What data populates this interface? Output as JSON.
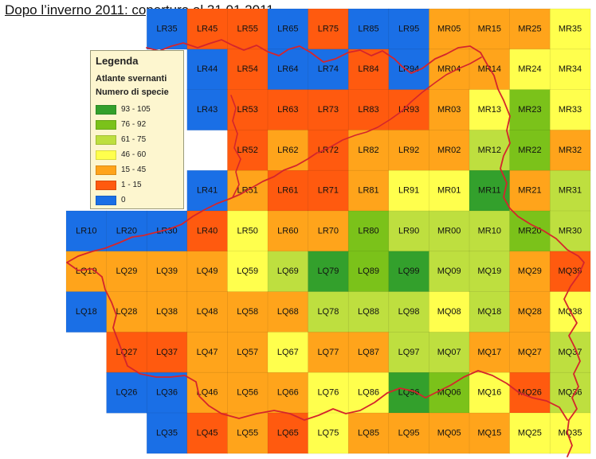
{
  "title": "Dopo l’inverno 2011: copertura al 31.01.2011",
  "legend": {
    "title": "Legenda",
    "subtitle": "Atlante svernanti",
    "heading": "Numero di specie",
    "classes": [
      {
        "label": "93 - 105",
        "color": "#33a02c"
      },
      {
        "label": "76 - 92",
        "color": "#7bc21a"
      },
      {
        "label": "61 - 75",
        "color": "#bedf3f"
      },
      {
        "label": "46 - 60",
        "color": "#ffff4d"
      },
      {
        "label": "15 - 45",
        "color": "#ffa41b"
      },
      {
        "label": "1 - 15",
        "color": "#ff5a0f"
      },
      {
        "label": "0",
        "color": "#1a6fe6"
      }
    ]
  },
  "border_color": "#d4252c",
  "grid": {
    "columns": [
      "LR10",
      "LR20",
      "LR30",
      "LR40",
      "LR50",
      "LR60",
      "LR70",
      "LR80",
      "LR90",
      "MR00",
      "MR10",
      "MR20",
      "MR30"
    ],
    "rows": [
      [
        "LR35",
        "LR45",
        "LR55",
        "LR65",
        "LR75",
        "LR85",
        "LR95",
        "MR05",
        "MR15",
        "MR25",
        "MR35"
      ],
      [
        "LR44",
        "LR54",
        "LR64",
        "LR74",
        "LR84",
        "LR94",
        "MR04",
        "MR14",
        "MR24",
        "MR34"
      ],
      [
        "LR43",
        "LR53",
        "LR63",
        "LR73",
        "LR83",
        "LR93",
        "MR03",
        "MR13",
        "MR23",
        "MR33"
      ],
      [
        "LR52",
        "LR62",
        "LR72",
        "LR82",
        "LR92",
        "MR02",
        "MR12",
        "MR22",
        "MR32"
      ],
      [
        "LR41",
        "LR51",
        "LR61",
        "LR71",
        "LR81",
        "LR91",
        "MR01",
        "MR11",
        "MR21",
        "MR31"
      ],
      [
        "LR10",
        "LR20",
        "LR30",
        "LR40",
        "LR50",
        "LR60",
        "LR70",
        "LR80",
        "LR90",
        "MR00",
        "MR10",
        "MR20",
        "MR30"
      ],
      [
        "LQ19",
        "LQ29",
        "LQ39",
        "LQ49",
        "LQ59",
        "LQ69",
        "LQ79",
        "LQ89",
        "LQ99",
        "MQ09",
        "MQ19",
        "MQ29",
        "MQ39"
      ],
      [
        "LQ18",
        "LQ28",
        "LQ38",
        "LQ48",
        "LQ58",
        "LQ68",
        "LQ78",
        "LQ88",
        "LQ98",
        "MQ08",
        "MQ18",
        "MQ28",
        "MQ38"
      ],
      [
        "LQ27",
        "LQ37",
        "LQ47",
        "LQ57",
        "LQ67",
        "LQ77",
        "LQ87",
        "LQ97",
        "MQ07",
        "MQ17",
        "MQ27",
        "MQ37"
      ],
      [
        "LQ26",
        "LQ36",
        "LQ46",
        "LQ56",
        "LQ66",
        "LQ76",
        "LQ86",
        "LQ96",
        "MQ06",
        "MQ16",
        "MQ26",
        "MQ36"
      ],
      [
        "LQ35",
        "LQ45",
        "LQ55",
        "LQ65",
        "LQ75",
        "LQ85",
        "LQ95",
        "MQ05",
        "MQ15",
        "MQ25",
        "MQ35"
      ]
    ]
  },
  "cells": [
    {
      "id": "LR35",
      "cls": 6
    },
    {
      "id": "LR45",
      "cls": 5
    },
    {
      "id": "LR55",
      "cls": 5
    },
    {
      "id": "LR65",
      "cls": 6
    },
    {
      "id": "LR75",
      "cls": 5
    },
    {
      "id": "LR85",
      "cls": 6
    },
    {
      "id": "LR95",
      "cls": 6
    },
    {
      "id": "MR05",
      "cls": 4
    },
    {
      "id": "MR15",
      "cls": 4
    },
    {
      "id": "MR25",
      "cls": 4
    },
    {
      "id": "MR35",
      "cls": 3
    },
    {
      "id": "LR44",
      "cls": 6
    },
    {
      "id": "LR54",
      "cls": 5
    },
    {
      "id": "LR64",
      "cls": 6
    },
    {
      "id": "LR74",
      "cls": 6
    },
    {
      "id": "LR84",
      "cls": 5
    },
    {
      "id": "LR94",
      "cls": 6
    },
    {
      "id": "MR04",
      "cls": 4
    },
    {
      "id": "MR14",
      "cls": 4
    },
    {
      "id": "MR24",
      "cls": 3
    },
    {
      "id": "MR34",
      "cls": 3
    },
    {
      "id": "LR43",
      "cls": 6
    },
    {
      "id": "LR53",
      "cls": 5
    },
    {
      "id": "LR63",
      "cls": 5
    },
    {
      "id": "LR73",
      "cls": 5
    },
    {
      "id": "LR83",
      "cls": 5
    },
    {
      "id": "LR93",
      "cls": 5
    },
    {
      "id": "MR03",
      "cls": 4
    },
    {
      "id": "MR13",
      "cls": 3
    },
    {
      "id": "MR23",
      "cls": 1
    },
    {
      "id": "MR33",
      "cls": 3
    },
    {
      "id": "LR52",
      "cls": 5
    },
    {
      "id": "LR62",
      "cls": 4
    },
    {
      "id": "LR72",
      "cls": 5
    },
    {
      "id": "LR82",
      "cls": 4
    },
    {
      "id": "LR92",
      "cls": 4
    },
    {
      "id": "MR02",
      "cls": 4
    },
    {
      "id": "MR12",
      "cls": 2
    },
    {
      "id": "MR22",
      "cls": 1
    },
    {
      "id": "MR32",
      "cls": 4
    },
    {
      "id": "LR41",
      "cls": 6
    },
    {
      "id": "LR51",
      "cls": 4
    },
    {
      "id": "LR61",
      "cls": 5
    },
    {
      "id": "LR71",
      "cls": 5
    },
    {
      "id": "LR81",
      "cls": 4
    },
    {
      "id": "LR91",
      "cls": 3
    },
    {
      "id": "MR01",
      "cls": 3
    },
    {
      "id": "MR11",
      "cls": 0
    },
    {
      "id": "MR21",
      "cls": 4
    },
    {
      "id": "MR31",
      "cls": 2
    },
    {
      "id": "LR10",
      "cls": 6
    },
    {
      "id": "LR20",
      "cls": 6
    },
    {
      "id": "LR30",
      "cls": 6
    },
    {
      "id": "LR40",
      "cls": 5
    },
    {
      "id": "LR50",
      "cls": 3
    },
    {
      "id": "LR60",
      "cls": 4
    },
    {
      "id": "LR70",
      "cls": 4
    },
    {
      "id": "LR80",
      "cls": 1
    },
    {
      "id": "LR90",
      "cls": 2
    },
    {
      "id": "MR00",
      "cls": 2
    },
    {
      "id": "MR10",
      "cls": 2
    },
    {
      "id": "MR20",
      "cls": 1
    },
    {
      "id": "MR30",
      "cls": 2
    },
    {
      "id": "LQ19",
      "cls": 4
    },
    {
      "id": "LQ29",
      "cls": 4
    },
    {
      "id": "LQ39",
      "cls": 4
    },
    {
      "id": "LQ49",
      "cls": 4
    },
    {
      "id": "LQ59",
      "cls": 3
    },
    {
      "id": "LQ69",
      "cls": 2
    },
    {
      "id": "LQ79",
      "cls": 0
    },
    {
      "id": "LQ89",
      "cls": 1
    },
    {
      "id": "LQ99",
      "cls": 0
    },
    {
      "id": "MQ09",
      "cls": 2
    },
    {
      "id": "MQ19",
      "cls": 2
    },
    {
      "id": "MQ29",
      "cls": 4
    },
    {
      "id": "MQ39",
      "cls": 5
    },
    {
      "id": "LQ18",
      "cls": 6
    },
    {
      "id": "LQ28",
      "cls": 4
    },
    {
      "id": "LQ38",
      "cls": 4
    },
    {
      "id": "LQ48",
      "cls": 4
    },
    {
      "id": "LQ58",
      "cls": 4
    },
    {
      "id": "LQ68",
      "cls": 4
    },
    {
      "id": "LQ78",
      "cls": 2
    },
    {
      "id": "LQ88",
      "cls": 2
    },
    {
      "id": "LQ98",
      "cls": 2
    },
    {
      "id": "MQ08",
      "cls": 3
    },
    {
      "id": "MQ18",
      "cls": 2
    },
    {
      "id": "MQ28",
      "cls": 4
    },
    {
      "id": "MQ38",
      "cls": 3
    },
    {
      "id": "LQ27",
      "cls": 5
    },
    {
      "id": "LQ37",
      "cls": 5
    },
    {
      "id": "LQ47",
      "cls": 4
    },
    {
      "id": "LQ57",
      "cls": 4
    },
    {
      "id": "LQ67",
      "cls": 3
    },
    {
      "id": "LQ77",
      "cls": 4
    },
    {
      "id": "LQ87",
      "cls": 4
    },
    {
      "id": "LQ97",
      "cls": 2
    },
    {
      "id": "MQ07",
      "cls": 2
    },
    {
      "id": "MQ17",
      "cls": 4
    },
    {
      "id": "MQ27",
      "cls": 4
    },
    {
      "id": "MQ37",
      "cls": 2
    },
    {
      "id": "LQ26",
      "cls": 6
    },
    {
      "id": "LQ36",
      "cls": 6
    },
    {
      "id": "LQ46",
      "cls": 4
    },
    {
      "id": "LQ56",
      "cls": 4
    },
    {
      "id": "LQ66",
      "cls": 4
    },
    {
      "id": "LQ76",
      "cls": 3
    },
    {
      "id": "LQ86",
      "cls": 3
    },
    {
      "id": "LQ96",
      "cls": 0
    },
    {
      "id": "MQ06",
      "cls": 1
    },
    {
      "id": "MQ16",
      "cls": 3
    },
    {
      "id": "MQ26",
      "cls": 5
    },
    {
      "id": "MQ36",
      "cls": 2
    },
    {
      "id": "LQ35",
      "cls": 6
    },
    {
      "id": "LQ45",
      "cls": 5
    },
    {
      "id": "LQ55",
      "cls": 4
    },
    {
      "id": "LQ65",
      "cls": 5
    },
    {
      "id": "LQ75",
      "cls": 3
    },
    {
      "id": "LQ85",
      "cls": 4
    },
    {
      "id": "LQ95",
      "cls": 4
    },
    {
      "id": "MQ05",
      "cls": 4
    },
    {
      "id": "MQ15",
      "cls": 4
    },
    {
      "id": "MQ25",
      "cls": 3
    },
    {
      "id": "MQ35",
      "cls": 3
    }
  ]
}
